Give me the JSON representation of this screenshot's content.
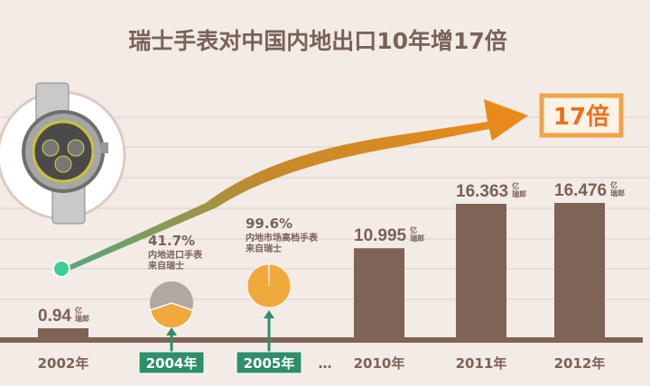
{
  "chart_data": {
    "type": "bar",
    "title": "瑞士手表对中国内地出口10年增17倍",
    "unit": "亿瑞郎",
    "unit_lines": [
      "亿",
      "瑞郎"
    ],
    "categories": [
      "2002年",
      "2004年",
      "2005年",
      "…",
      "2010年",
      "2011年",
      "2012年"
    ],
    "bars": [
      {
        "category": "2002年",
        "value": 0.94,
        "label": "0.94"
      },
      {
        "category": "2010年",
        "value": 10.995,
        "label": "10.995"
      },
      {
        "category": "2011年",
        "value": 16.363,
        "label": "16.363"
      },
      {
        "category": "2012年",
        "value": 16.476,
        "label": "16.476"
      }
    ],
    "pies": [
      {
        "category": "2004年",
        "percent": 41.7,
        "label": "41.7%",
        "note_lines": [
          "内地进口手表",
          "来自瑞士"
        ]
      },
      {
        "category": "2005年",
        "percent": 99.6,
        "label": "99.6%",
        "note_lines": [
          "内地市场高档手表",
          "来自瑞士"
        ]
      }
    ],
    "growth_label": "17倍",
    "grid": true,
    "colors": {
      "bar": "#7f6356",
      "pie_fill": "#f0a93c",
      "pie_rest": "#b3a7a1",
      "accent": "#e8701c",
      "highlight": "#2e8f6b",
      "dot": "#3dcf91"
    }
  }
}
